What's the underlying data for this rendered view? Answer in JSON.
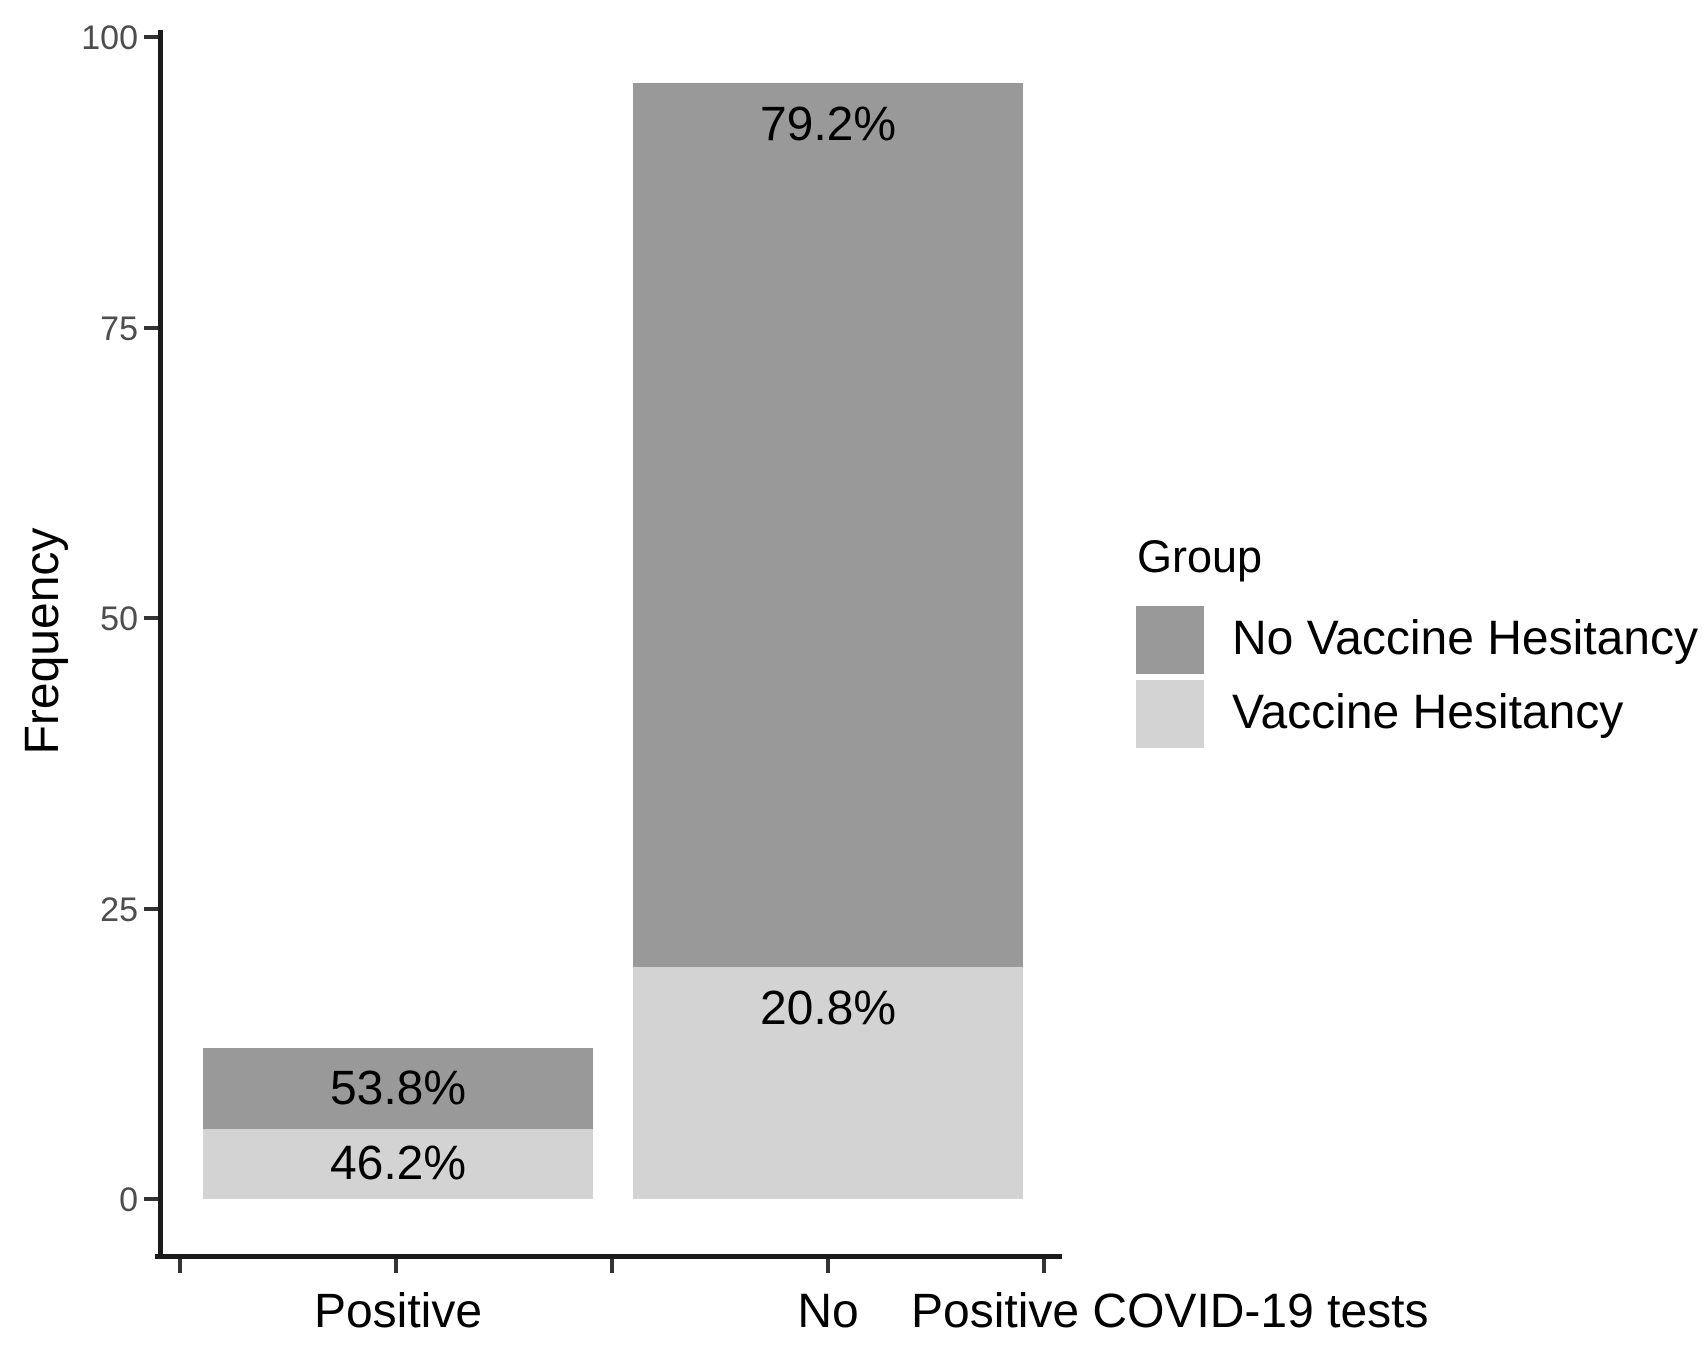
{
  "chart_data": {
    "type": "bar",
    "subtype": "stacked-vertical",
    "title": "",
    "xlabel": "Positive COVID-19 tests",
    "ylabel": "Frequency",
    "categories": [
      "Positive",
      "No"
    ],
    "totals": [
      13,
      96
    ],
    "series": [
      {
        "name": "Vaccine Hesitancy",
        "color": "#d3d3d3",
        "values": [
          6,
          20
        ],
        "percent_labels": [
          "46.2%",
          "20.8%"
        ]
      },
      {
        "name": "No Vaccine Hesitancy",
        "color": "#999999",
        "values": [
          7,
          76
        ],
        "percent_labels": [
          "53.8%",
          "79.2%"
        ]
      }
    ],
    "ylim": [
      0,
      100
    ],
    "yticks": [
      0,
      25,
      50,
      75,
      100
    ],
    "x_tick_count": 5,
    "grid": false,
    "legend": {
      "title": "Group",
      "position": "right",
      "entries": [
        {
          "label": "No Vaccine Hesitancy",
          "color": "#999999"
        },
        {
          "label": "Vaccine Hesitancy",
          "color": "#d3d3d3"
        }
      ]
    },
    "label_color": "#000000",
    "tick_label_color": "#4d4d4d",
    "axis_color": "#1a1a1a"
  }
}
